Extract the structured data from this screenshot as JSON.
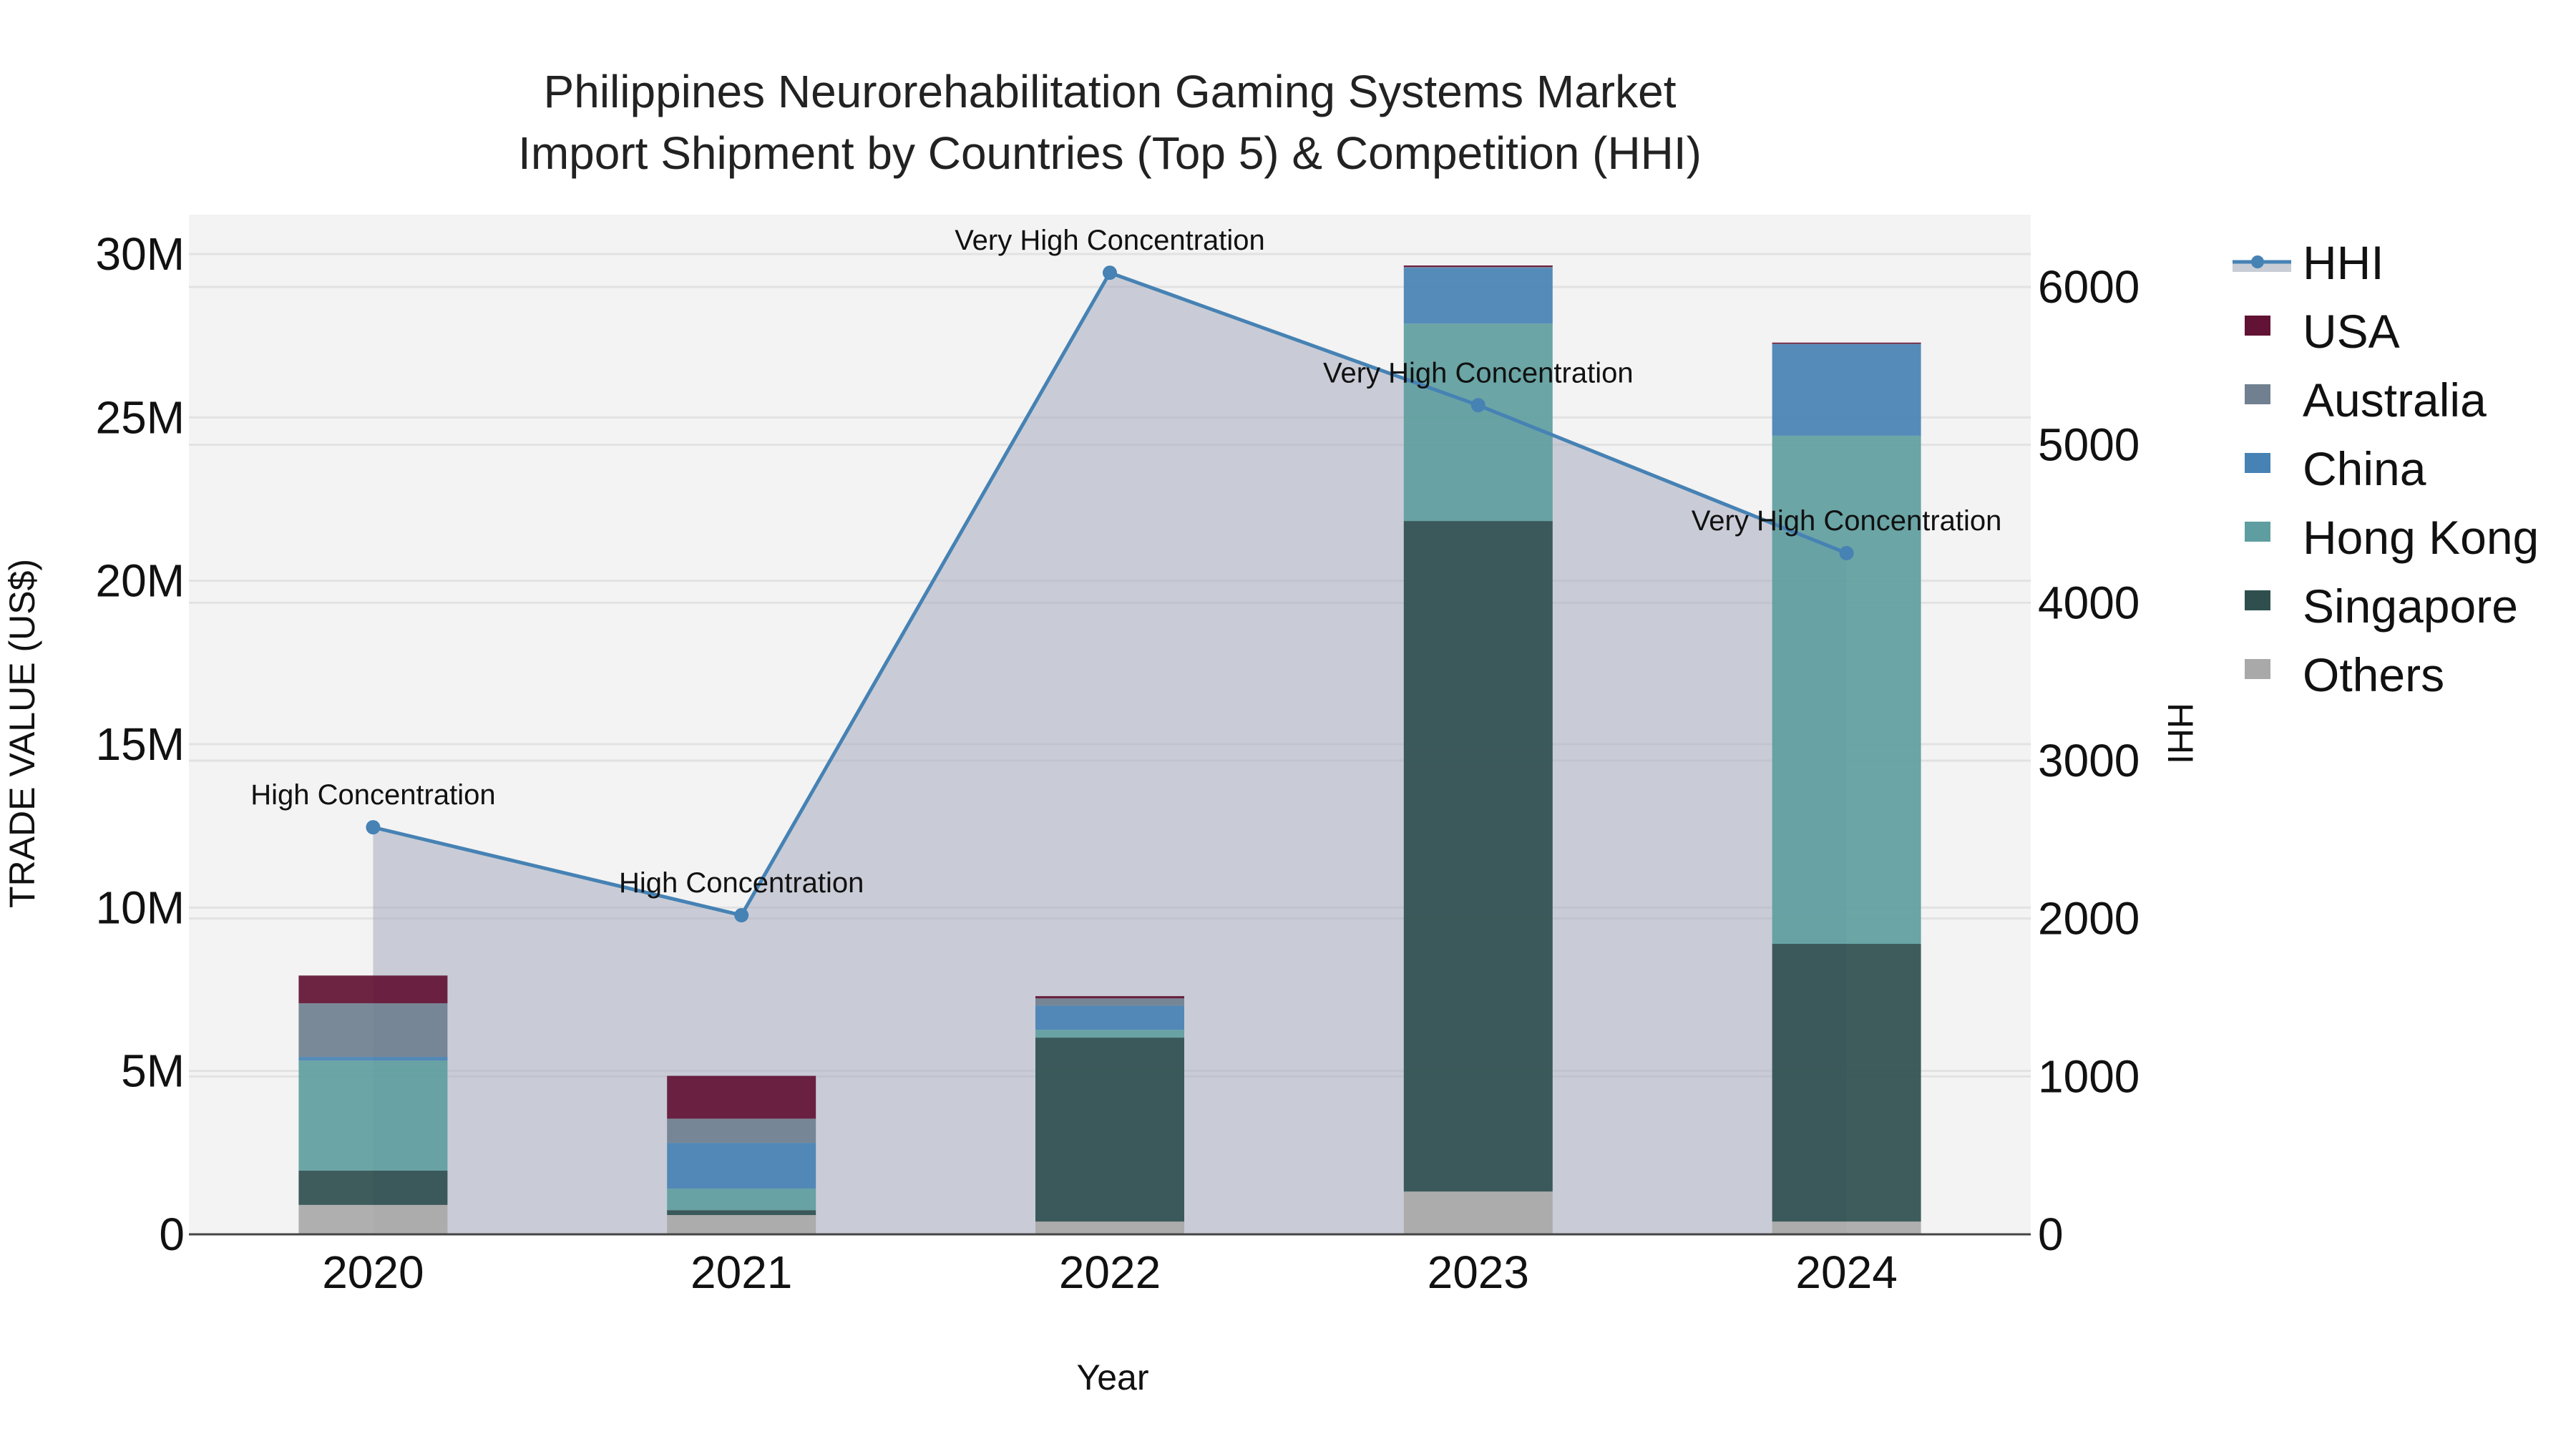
{
  "chart_data": {
    "type": "bar",
    "subtype": "stacked bar with secondary-axis line/area",
    "title": "Philippines Neurorehabilitation Gaming Systems Market",
    "subtitle": "Import Shipment by Countries (Top 5) & Competition (HHI)",
    "xlabel": "Year",
    "ylabel": "TRADE VALUE (US$)",
    "y2label": "HHI",
    "categories": [
      "2020",
      "2021",
      "2022",
      "2023",
      "2024"
    ],
    "ylim": [
      0,
      31200000
    ],
    "y_ticks": [
      0,
      5000000,
      10000000,
      15000000,
      20000000,
      25000000,
      30000000
    ],
    "y_tick_labels": [
      "0",
      "5M",
      "10M",
      "15M",
      "20M",
      "25M",
      "30M"
    ],
    "y2lim": [
      0,
      6470
    ],
    "y2_ticks": [
      0,
      1000,
      2000,
      3000,
      4000,
      5000,
      6000
    ],
    "y2_tick_labels": [
      "0",
      "1000",
      "2000",
      "3000",
      "4000",
      "5000",
      "6000"
    ],
    "grid": true,
    "legend_position": "right",
    "series": [
      {
        "name": "Others",
        "color": "#A9A9A9",
        "values": [
          900000,
          590000,
          390000,
          1310000,
          390000
        ]
      },
      {
        "name": "Singapore",
        "color": "#2F4F4F",
        "values": [
          1050000,
          150000,
          5630000,
          20520000,
          8500000
        ]
      },
      {
        "name": "Hong Kong",
        "color": "#5F9EA0",
        "values": [
          3370000,
          660000,
          240000,
          6040000,
          15550000
        ]
      },
      {
        "name": "China",
        "color": "#4682B4",
        "values": [
          110000,
          1400000,
          740000,
          1710000,
          2800000
        ]
      },
      {
        "name": "Australia",
        "color": "#708090",
        "values": [
          1640000,
          740000,
          220000,
          20000,
          10000
        ]
      },
      {
        "name": "USA",
        "color": "#621234",
        "values": [
          850000,
          1310000,
          70000,
          50000,
          40000
        ]
      }
    ],
    "line_series": {
      "name": "HHI",
      "axis": "y2",
      "color": "#4682B4",
      "fill_color": "rgba(150,160,180,0.45)",
      "values": [
        2578,
        2021,
        6090,
        5251,
        4314
      ],
      "annotations": [
        "High Concentration",
        "High Concentration",
        "Very High Concentration",
        "Very High Concentration",
        "Very High Concentration"
      ]
    }
  },
  "legend": {
    "items": [
      {
        "label": "HHI",
        "color": "#4682B4",
        "kind": "line"
      },
      {
        "label": "USA",
        "color": "#621234",
        "kind": "box"
      },
      {
        "label": "Australia",
        "color": "#708090",
        "kind": "box"
      },
      {
        "label": "China",
        "color": "#4682B4",
        "kind": "box"
      },
      {
        "label": "Hong Kong",
        "color": "#5F9EA0",
        "kind": "box"
      },
      {
        "label": "Singapore",
        "color": "#2F4F4F",
        "kind": "box"
      },
      {
        "label": "Others",
        "color": "#A9A9A9",
        "kind": "box"
      }
    ]
  },
  "colors": {
    "plot_bg": "#F3F3F3",
    "grid": "#E2E2E2",
    "axis_line": "#444444"
  }
}
